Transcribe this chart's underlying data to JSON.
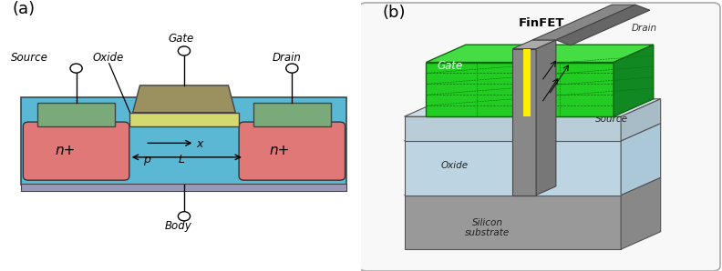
{
  "fig_width": 7.92,
  "fig_height": 2.98,
  "dpi": 100,
  "bg_color": "#ffffff",
  "panel_a": {
    "label": "(a)",
    "body_color": "#5bb8d4",
    "body_edge": "#444444",
    "substrate_color": "#9999bb",
    "nplus_color": "#e07878",
    "nplus_edge": "#333333",
    "source_contact_color": "#7aaa7a",
    "gate_oxide_color": "#d4d870",
    "gate_color": "#9a9060",
    "labels": {
      "source": "Source",
      "oxide": "Oxide",
      "gate": "Gate",
      "drain": "Drain",
      "body": "Body",
      "nplus": "n+",
      "x_arrow": "x",
      "L_arrow": "L",
      "p_label": "p"
    }
  },
  "panel_b": {
    "label": "(b)",
    "finfet_label": "FinFET",
    "box_bg": "#f8f8f8",
    "box_edge": "#aaaaaa",
    "silicon_front": "#999999",
    "silicon_top": "#aaaaaa",
    "silicon_right": "#888888",
    "oxide_front": "#bdd5e3",
    "oxide_top": "#cce2ee",
    "oxide_right": "#aac8d8",
    "source_front": "#b8cdd8",
    "source_top": "#ccdde8",
    "source_right": "#a8bcc8",
    "gate_front": "#22cc22",
    "gate_top": "#44dd44",
    "gate_right": "#118822",
    "fin_color": "#888888",
    "fin_edge": "#555555",
    "drain_color": "#888888",
    "yellow_chan": "#ffee00",
    "dashed_color": "#007700",
    "labels": {
      "gate": "Gate",
      "source": "Source",
      "drain": "Drain",
      "oxide": "Oxide",
      "silicon": "Silicon\nsubstrate",
      "finfet": "FinFET"
    }
  }
}
